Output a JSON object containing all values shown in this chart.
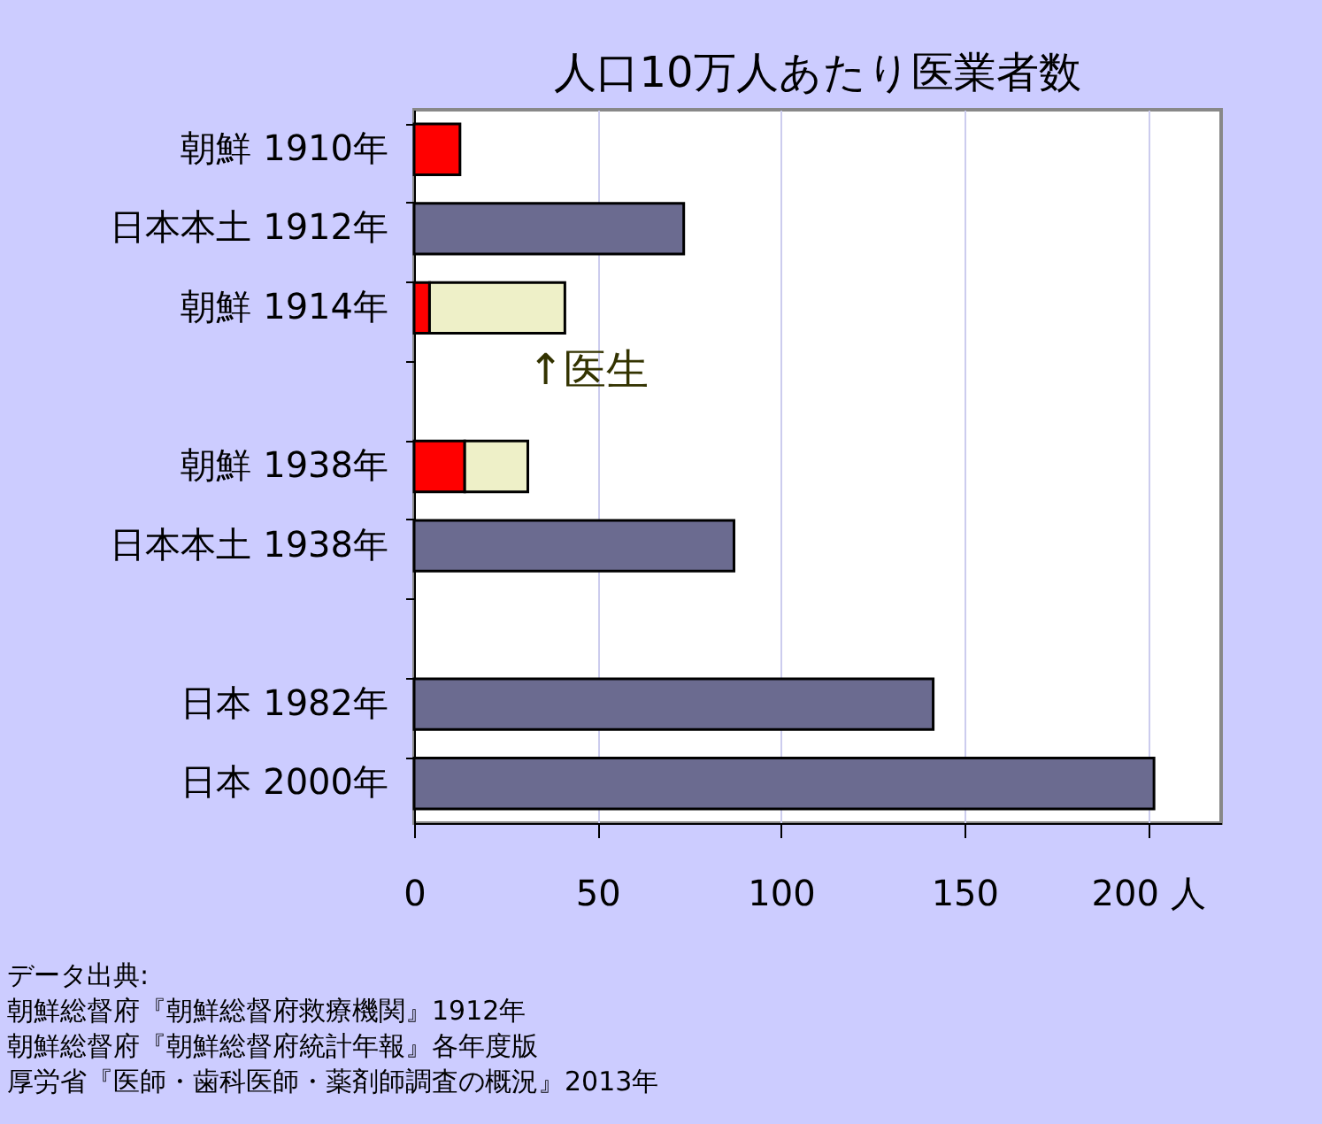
{
  "chart_data": {
    "type": "bar",
    "orientation": "horizontal",
    "stacked": true,
    "title": "人口10万人あたり医業者数",
    "categories": [
      "朝鮮 1910年",
      "日本本土 1912年",
      "朝鮮 1914年",
      null,
      "朝鮮 1938年",
      "日本本土 1938年",
      null,
      "日本 1982年",
      "日本 2000年"
    ],
    "series": [
      {
        "color": "#ff0000",
        "values": [
          12.5,
          null,
          4.2,
          null,
          13.8,
          null,
          null,
          null,
          null
        ]
      },
      {
        "color": "#eef0c8",
        "values": [
          null,
          null,
          36.9,
          null,
          17.2,
          null,
          null,
          null,
          null
        ]
      },
      {
        "color": "#6b6b90",
        "values": [
          null,
          73.5,
          null,
          null,
          null,
          87.2,
          null,
          141.5,
          201.7
        ]
      }
    ],
    "xlim": [
      0,
      220
    ],
    "xticks": [
      0,
      50,
      100,
      150,
      {
        "value": 200,
        "label": "200 人"
      }
    ],
    "grid": "x",
    "annotations": [
      {
        "text": "↑医生",
        "x": 31,
        "y": "朝鮮 1914年"
      },
      "データ出典:",
      "朝鮮総督府『朝鮮総督府救療機関』1912年",
      "朝鮮総督府『朝鮮総督府統計年報』各年度版",
      "厚労省『医師・歯科医師・薬剤師調査の概況』2013年"
    ]
  }
}
